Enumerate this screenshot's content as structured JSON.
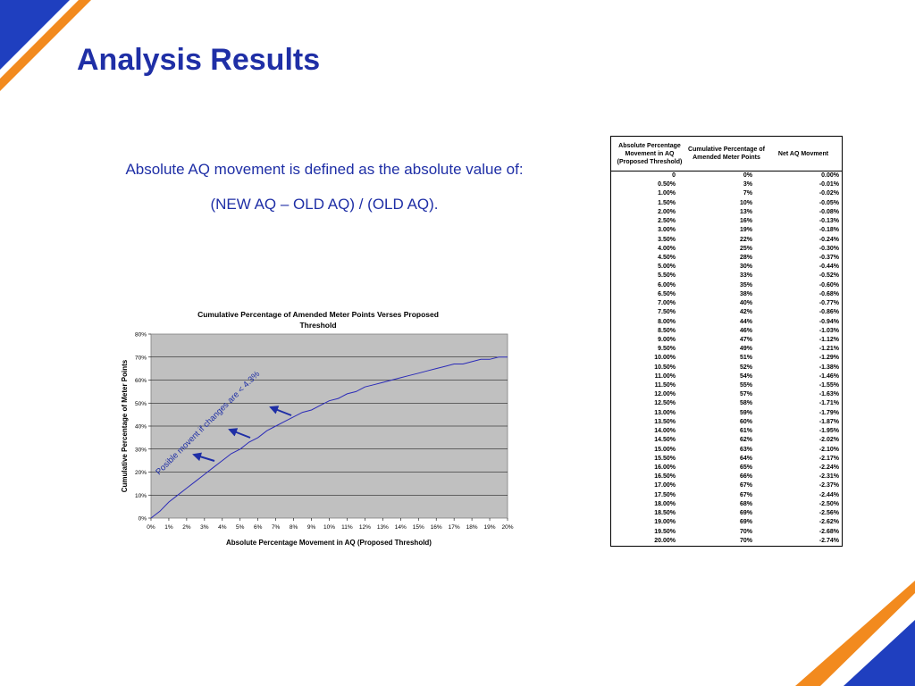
{
  "slide": {
    "title": "Analysis Results",
    "intro_line1": "Absolute AQ movement is defined as the absolute value of:",
    "intro_line2": "(NEW AQ – OLD AQ) / (OLD AQ)."
  },
  "colors": {
    "title_blue": "#1f2fa6",
    "deco_blue": "#1f3fbf",
    "deco_orange": "#f28a1e",
    "plot_bg": "#c0c0c0",
    "curve": "#2b2bb8"
  },
  "chart_data": {
    "type": "line",
    "title": "Cumulative Percentage of Amended Meter Points Verses Proposed Threshold",
    "xlabel": "Absolute Percentage Movement in AQ (Proposed Threshold)",
    "ylabel": "Cumulative Percentage of Meter Points",
    "x_ticks": [
      "0%",
      "1%",
      "2%",
      "3%",
      "4%",
      "5%",
      "6%",
      "7%",
      "8%",
      "9%",
      "10%",
      "11%",
      "12%",
      "13%",
      "14%",
      "15%",
      "16%",
      "17%",
      "18%",
      "19%",
      "20%"
    ],
    "y_ticks": [
      "0%",
      "10%",
      "20%",
      "30%",
      "40%",
      "50%",
      "60%",
      "70%",
      "80%"
    ],
    "xlim": [
      0,
      20
    ],
    "ylim": [
      0,
      80
    ],
    "grid": true,
    "annotation": "Posible movent if changes are < 4.3%",
    "series": [
      {
        "x": [
          0,
          0.5,
          1,
          1.5,
          2,
          2.5,
          3,
          3.5,
          4,
          4.5,
          5,
          5.5,
          6,
          6.5,
          7,
          7.5,
          8,
          8.5,
          9,
          9.5,
          10,
          10.5,
          11,
          11.5,
          12,
          12.5,
          13,
          13.5,
          14,
          14.5,
          15,
          15.5,
          16,
          16.5,
          17,
          17.5,
          18,
          18.5,
          19,
          19.5,
          20
        ],
        "y": [
          0,
          3,
          7,
          10,
          13,
          16,
          19,
          22,
          25,
          28,
          30,
          33,
          35,
          38,
          40,
          42,
          44,
          46,
          47,
          49,
          51,
          52,
          54,
          55,
          57,
          58,
          59,
          60,
          61,
          62,
          63,
          64,
          65,
          66,
          67,
          67,
          68,
          69,
          69,
          70,
          70
        ]
      }
    ]
  },
  "table": {
    "headers": [
      "Absolute Percentage Movement in AQ (Proposed Threshold)",
      "Cumulative Percentage of Amended Meter Points",
      "Net AQ Movment"
    ],
    "rows": [
      [
        "0",
        "0%",
        "0.00%"
      ],
      [
        "0.50%",
        "3%",
        "-0.01%"
      ],
      [
        "1.00%",
        "7%",
        "-0.02%"
      ],
      [
        "1.50%",
        "10%",
        "-0.05%"
      ],
      [
        "2.00%",
        "13%",
        "-0.08%"
      ],
      [
        "2.50%",
        "16%",
        "-0.13%"
      ],
      [
        "3.00%",
        "19%",
        "-0.18%"
      ],
      [
        "3.50%",
        "22%",
        "-0.24%"
      ],
      [
        "4.00%",
        "25%",
        "-0.30%"
      ],
      [
        "4.50%",
        "28%",
        "-0.37%"
      ],
      [
        "5.00%",
        "30%",
        "-0.44%"
      ],
      [
        "5.50%",
        "33%",
        "-0.52%"
      ],
      [
        "6.00%",
        "35%",
        "-0.60%"
      ],
      [
        "6.50%",
        "38%",
        "-0.68%"
      ],
      [
        "7.00%",
        "40%",
        "-0.77%"
      ],
      [
        "7.50%",
        "42%",
        "-0.86%"
      ],
      [
        "8.00%",
        "44%",
        "-0.94%"
      ],
      [
        "8.50%",
        "46%",
        "-1.03%"
      ],
      [
        "9.00%",
        "47%",
        "-1.12%"
      ],
      [
        "9.50%",
        "49%",
        "-1.21%"
      ],
      [
        "10.00%",
        "51%",
        "-1.29%"
      ],
      [
        "10.50%",
        "52%",
        "-1.38%"
      ],
      [
        "11.00%",
        "54%",
        "-1.46%"
      ],
      [
        "11.50%",
        "55%",
        "-1.55%"
      ],
      [
        "12.00%",
        "57%",
        "-1.63%"
      ],
      [
        "12.50%",
        "58%",
        "-1.71%"
      ],
      [
        "13.00%",
        "59%",
        "-1.79%"
      ],
      [
        "13.50%",
        "60%",
        "-1.87%"
      ],
      [
        "14.00%",
        "61%",
        "-1.95%"
      ],
      [
        "14.50%",
        "62%",
        "-2.02%"
      ],
      [
        "15.00%",
        "63%",
        "-2.10%"
      ],
      [
        "15.50%",
        "64%",
        "-2.17%"
      ],
      [
        "16.00%",
        "65%",
        "-2.24%"
      ],
      [
        "16.50%",
        "66%",
        "-2.31%"
      ],
      [
        "17.00%",
        "67%",
        "-2.37%"
      ],
      [
        "17.50%",
        "67%",
        "-2.44%"
      ],
      [
        "18.00%",
        "68%",
        "-2.50%"
      ],
      [
        "18.50%",
        "69%",
        "-2.56%"
      ],
      [
        "19.00%",
        "69%",
        "-2.62%"
      ],
      [
        "19.50%",
        "70%",
        "-2.68%"
      ],
      [
        "20.00%",
        "70%",
        "-2.74%"
      ]
    ]
  }
}
